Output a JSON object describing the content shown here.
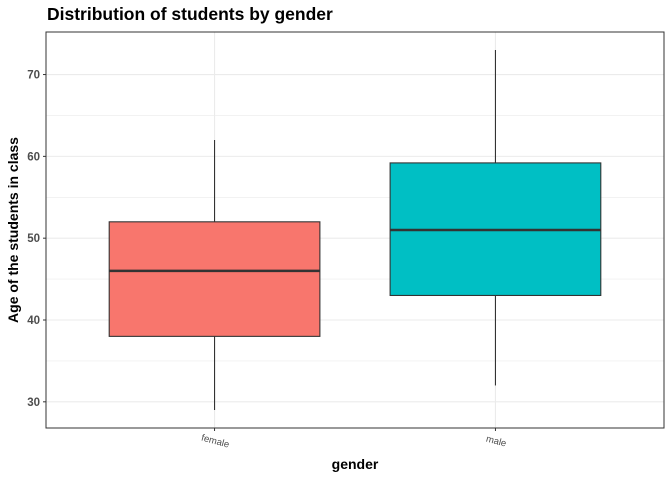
{
  "chart_data": {
    "type": "boxplot",
    "title": "Distribution of students by gender",
    "xlabel": "gender",
    "ylabel": "Age of the students in class",
    "ylim": [
      26.8,
      75.2
    ],
    "y_ticks": [
      30,
      40,
      50,
      60,
      70
    ],
    "grid": true,
    "categories": [
      "female",
      "male"
    ],
    "boxes": [
      {
        "category": "female",
        "min": 29,
        "q1": 38,
        "median": 46,
        "q3": 52,
        "max": 62,
        "color": "#F8766D"
      },
      {
        "category": "male",
        "min": 32,
        "q1": 43,
        "median": 51,
        "q3": 59.2,
        "max": 73,
        "color": "#00BFC4"
      }
    ]
  }
}
